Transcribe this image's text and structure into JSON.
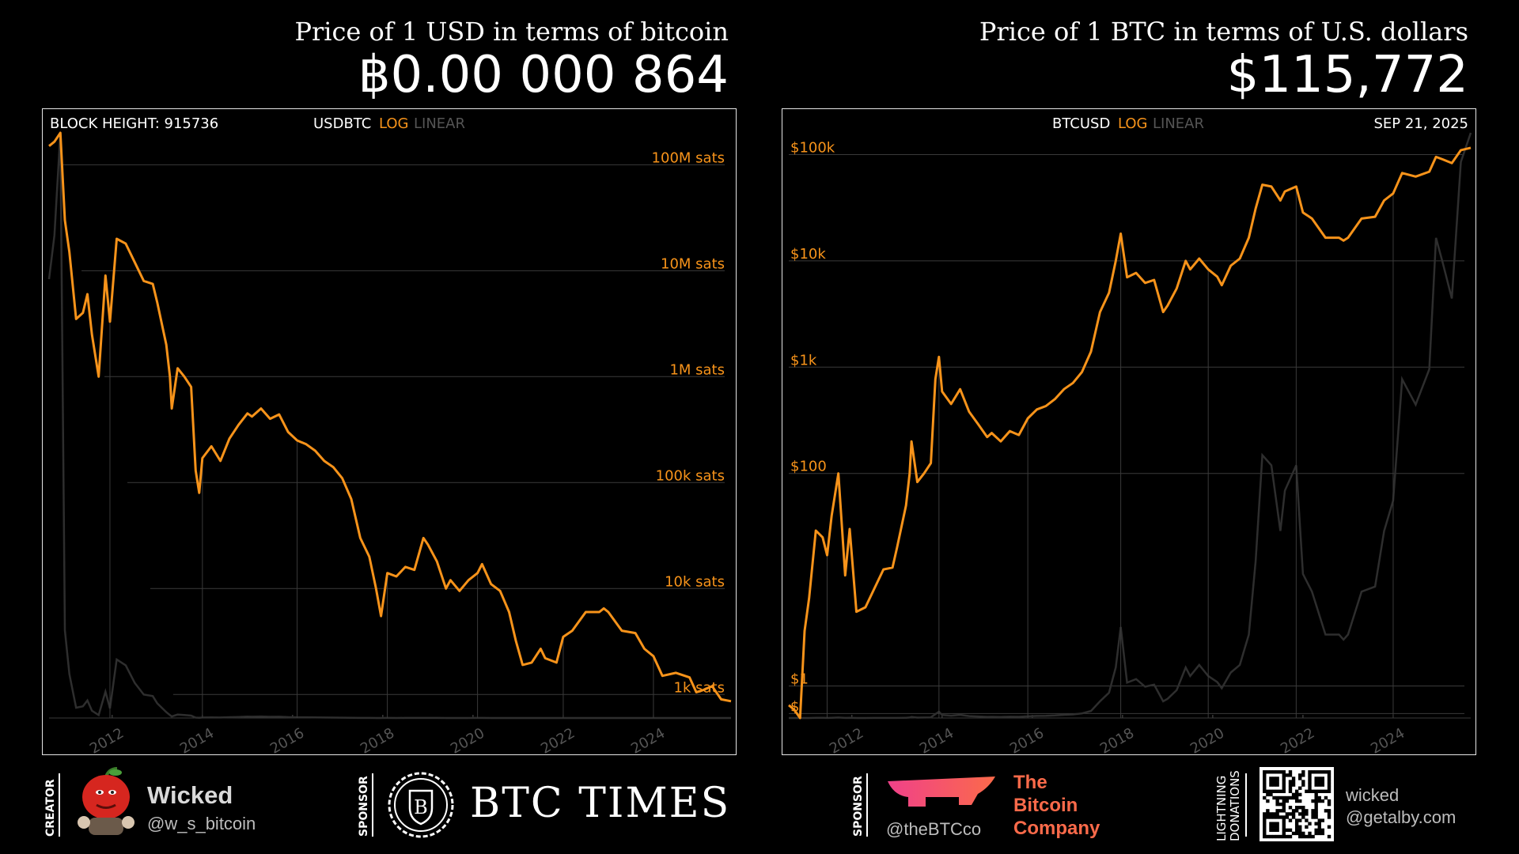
{
  "header": {
    "left_subtitle": "Price of 1 USD in terms of bitcoin",
    "left_value": "฿0.00 000 864",
    "right_subtitle": "Price of 1 BTC in terms of U.S. dollars",
    "right_value": "$115,772"
  },
  "left_panel": {
    "block_height": "BLOCK HEIGHT: 915736",
    "pair": "USDBTC",
    "mode_log": "LOG",
    "mode_linear": "LINEAR"
  },
  "right_panel": {
    "pair": "BTCUSD",
    "mode_log": "LOG",
    "mode_linear": "LINEAR",
    "date": "SEP 21, 2025"
  },
  "chart_data": [
    {
      "type": "line",
      "title": "USDBTC",
      "scale": "log",
      "y_unit": "sats per USD",
      "y_ticks": [
        "100M sats",
        "10M sats",
        "1M sats",
        "100k sats",
        "10k sats",
        "1k sats"
      ],
      "x_ticks": [
        "2012",
        "2014",
        "2016",
        "2018",
        "2020",
        "2022",
        "2024"
      ],
      "x_range": [
        2010.6,
        2025.72
      ],
      "ylim": [
        600,
        200000000
      ],
      "grid": true,
      "color": "#f7931a",
      "series": [
        {
          "x": [
            2010.6,
            2010.72,
            2010.85,
            2010.95,
            2011.05,
            2011.2,
            2011.35,
            2011.45,
            2011.55,
            2011.7,
            2011.85,
            2011.95,
            2012.1,
            2012.3,
            2012.5,
            2012.7,
            2012.9,
            2013.0,
            2013.2,
            2013.28,
            2013.32,
            2013.45,
            2013.6,
            2013.75,
            2013.85,
            2013.93,
            2014.0,
            2014.2,
            2014.4,
            2014.6,
            2014.8,
            2015.0,
            2015.1,
            2015.3,
            2015.5,
            2015.7,
            2015.9,
            2016.1,
            2016.3,
            2016.5,
            2016.7,
            2016.9,
            2017.1,
            2017.3,
            2017.5,
            2017.7,
            2017.85,
            2017.96,
            2018.1,
            2018.3,
            2018.5,
            2018.7,
            2018.9,
            2019.0,
            2019.2,
            2019.4,
            2019.5,
            2019.7,
            2019.9,
            2020.1,
            2020.2,
            2020.4,
            2020.6,
            2020.8,
            2020.95,
            2021.1,
            2021.3,
            2021.5,
            2021.6,
            2021.85,
            2022.0,
            2022.2,
            2022.5,
            2022.8,
            2022.9,
            2023.0,
            2023.3,
            2023.6,
            2023.8,
            2024.0,
            2024.2,
            2024.5,
            2024.8,
            2024.95,
            2025.1,
            2025.3,
            2025.5,
            2025.72
          ],
          "values": [
            150000000,
            165000000,
            200000000,
            30000000,
            15000000,
            3500000,
            4000000,
            6000000,
            2500000,
            1000000,
            9000000,
            3300000,
            20000000,
            18000000,
            12000000,
            8000000,
            7500000,
            5000000,
            2000000,
            1000000,
            500000,
            1200000,
            1000000,
            800000,
            130000,
            80000,
            170000,
            220000,
            160000,
            260000,
            350000,
            450000,
            420000,
            500000,
            400000,
            440000,
            300000,
            250000,
            230000,
            200000,
            160000,
            140000,
            110000,
            70000,
            30000,
            20000,
            10000,
            5500,
            14000,
            13000,
            16000,
            15000,
            30000,
            26000,
            18000,
            10000,
            12000,
            9500,
            12000,
            14000,
            17000,
            11000,
            9500,
            6000,
            3200,
            1900,
            2000,
            2700,
            2200,
            2000,
            3500,
            4000,
            6000,
            6000,
            6500,
            6000,
            4000,
            3800,
            2700,
            2300,
            1500,
            1600,
            1450,
            1050,
            1100,
            1200,
            900,
            864
          ]
        }
      ]
    },
    {
      "type": "line",
      "title": "BTCUSD",
      "scale": "log",
      "y_unit": "USD",
      "y_ticks": [
        "$100k",
        "$10k",
        "$1k",
        "$100",
        "$1",
        "$"
      ],
      "x_ticks": [
        "2012",
        "2014",
        "2016",
        "2018",
        "2020",
        "2022",
        "2024"
      ],
      "x_range": [
        2010.6,
        2025.72
      ],
      "ylim": [
        0.5,
        160000
      ],
      "grid": true,
      "color": "#f7931a",
      "series": [
        {
          "x": [
            2010.6,
            2010.72,
            2010.85,
            2010.95,
            2011.05,
            2011.2,
            2011.35,
            2011.45,
            2011.55,
            2011.7,
            2011.85,
            2011.95,
            2012.1,
            2012.3,
            2012.5,
            2012.7,
            2012.9,
            2013.0,
            2013.2,
            2013.28,
            2013.32,
            2013.45,
            2013.6,
            2013.75,
            2013.85,
            2013.93,
            2014.0,
            2014.2,
            2014.4,
            2014.6,
            2014.8,
            2015.0,
            2015.1,
            2015.3,
            2015.5,
            2015.7,
            2015.9,
            2016.1,
            2016.3,
            2016.5,
            2016.7,
            2016.9,
            2017.1,
            2017.3,
            2017.5,
            2017.7,
            2017.85,
            2017.96,
            2018.1,
            2018.3,
            2018.5,
            2018.7,
            2018.9,
            2019.0,
            2019.2,
            2019.4,
            2019.5,
            2019.7,
            2019.9,
            2020.1,
            2020.2,
            2020.4,
            2020.6,
            2020.8,
            2020.95,
            2021.1,
            2021.3,
            2021.5,
            2021.6,
            2021.85,
            2022.0,
            2022.2,
            2022.5,
            2022.8,
            2022.9,
            2023.0,
            2023.3,
            2023.6,
            2023.8,
            2024.0,
            2024.2,
            2024.5,
            2024.8,
            2024.95,
            2025.1,
            2025.3,
            2025.5,
            2025.72
          ],
          "values": [
            0.66,
            0.6,
            0.5,
            3.3,
            6.7,
            29,
            25,
            17,
            40,
            100,
            11,
            30,
            5,
            5.5,
            8.3,
            12.5,
            13,
            20,
            50,
            100,
            200,
            83,
            100,
            125,
            770,
            1250,
            590,
            450,
            620,
            380,
            290,
            220,
            240,
            200,
            250,
            230,
            330,
            400,
            430,
            500,
            620,
            710,
            900,
            1400,
            3300,
            5000,
            10000,
            18000,
            7000,
            7700,
            6200,
            6600,
            3300,
            3800,
            5500,
            10000,
            8300,
            10500,
            8300,
            7100,
            5900,
            9000,
            10500,
            16500,
            31000,
            52000,
            50000,
            37000,
            45000,
            50000,
            28500,
            25000,
            16500,
            16500,
            15500,
            16500,
            25000,
            26000,
            37000,
            43000,
            67000,
            62000,
            69000,
            95000,
            90000,
            83000,
            110000,
            115772
          ]
        }
      ]
    }
  ],
  "footer": {
    "creator_label": "CREATOR",
    "creator_name": "Wicked",
    "creator_handle": "@w_s_bitcoin",
    "sponsor_label": "SPONSOR",
    "btctimes_logo_letter": "B",
    "btctimes_name": "BTC TIMES",
    "sponsor2_label": "SPONSOR",
    "btcco_handle": "@theBTCco",
    "btcco_line1": "The",
    "btcco_line2": "Bitcoin",
    "btcco_line3": "Company",
    "lightning_label_1": "LIGHTNING",
    "lightning_label_2": "DONATIONS",
    "lightning_line1": "wicked",
    "lightning_line2": "@getalby.com"
  }
}
